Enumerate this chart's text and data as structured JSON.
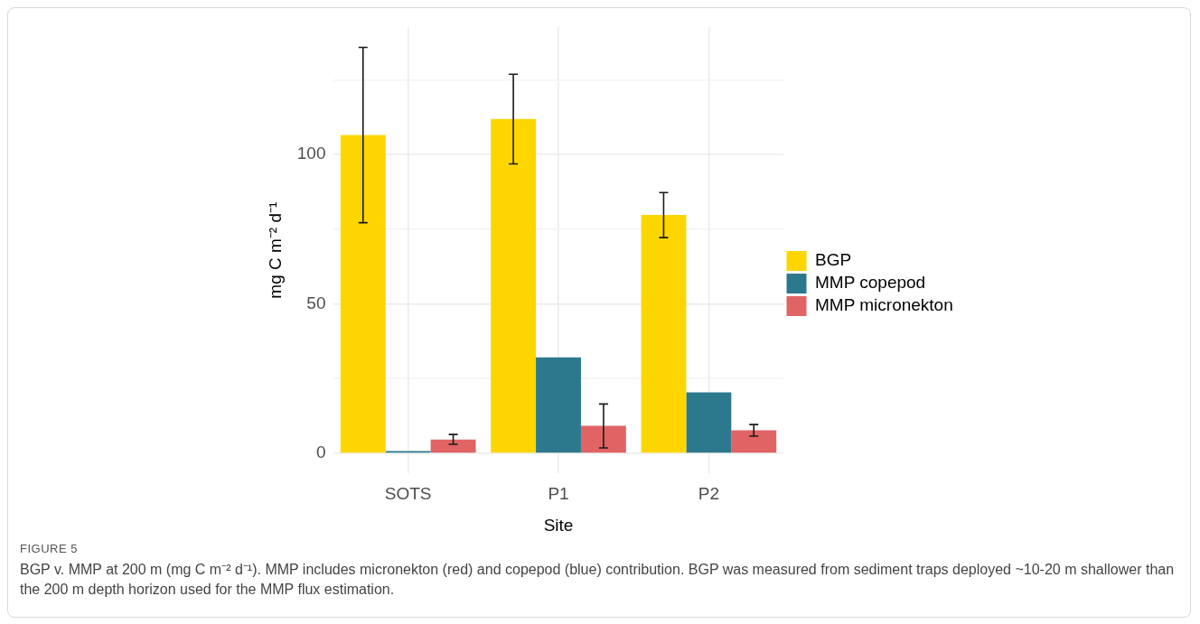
{
  "chart_data": {
    "type": "bar",
    "xlabel": "Site",
    "ylabel": "mg C m⁻² d⁻¹",
    "categories": [
      "SOTS",
      "P1",
      "P2"
    ],
    "series": [
      {
        "name": "BGP",
        "color": "#fdd600",
        "values": [
          106.6,
          111.9,
          79.8
        ],
        "errors": [
          [
            77.2,
            135.9
          ],
          [
            96.9,
            126.9
          ],
          [
            72.2,
            87.3
          ]
        ]
      },
      {
        "name": "MMP copepod",
        "color": "#2c788c",
        "values": [
          0.7,
          32.1,
          20.4
        ]
      },
      {
        "name": "MMP micronekton",
        "color": "#e06464",
        "values": [
          4.6,
          9.2,
          7.7
        ],
        "errors": [
          [
            3.0,
            6.3
          ],
          [
            1.8,
            16.5
          ],
          [
            5.7,
            9.6
          ]
        ]
      }
    ],
    "ylim": [
      -6.8,
      142.7
    ],
    "yticks": [
      0,
      {
        "value": 25,
        "label": null
      },
      50,
      {
        "value": 75,
        "label": null
      },
      100,
      {
        "value": 125,
        "label": null
      }
    ],
    "grid": true,
    "legend": "right",
    "annotations": [
      "FIGURE 5",
      "BGP v. MMP at 200 m (mg C m⁻² d⁻¹). MMP includes micronekton (red) and copepod (blue) contribution. BGP was measured from sediment traps deployed ~10-20 m shallower than the 200 m depth horizon used for the MMP flux estimation."
    ]
  }
}
